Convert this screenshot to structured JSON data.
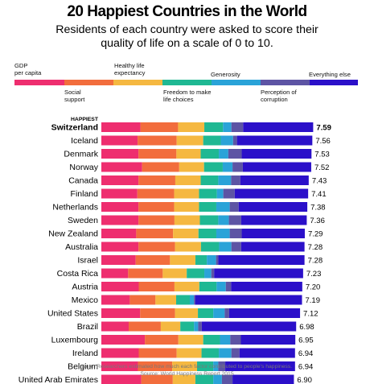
{
  "title": "20 Happiest Countries in the World",
  "subtitle": "Residents of each country were asked to score their quality of life on a scale of 0 to 10.",
  "happiest_label": "HAPPIEST",
  "note": "Note: Researchers estimated how much each factor contributed to people's happiness.",
  "source": "Source: World Happiness Report 2015",
  "chart_data": {
    "type": "bar",
    "orientation": "horizontal",
    "stacked": true,
    "categories": [
      "Switzerland",
      "Iceland",
      "Denmark",
      "Norway",
      "Canada",
      "Finland",
      "Netherlands",
      "Sweden",
      "New Zealand",
      "Australia",
      "Israel",
      "Costa Rica",
      "Austria",
      "Mexico",
      "United States",
      "Brazil",
      "Luxembourg",
      "Ireland",
      "Belgium",
      "United Arab Emirates"
    ],
    "totals": [
      7.59,
      7.56,
      7.53,
      7.52,
      7.43,
      7.41,
      7.38,
      7.36,
      7.29,
      7.28,
      7.28,
      7.23,
      7.2,
      7.19,
      7.12,
      6.98,
      6.95,
      6.94,
      6.94,
      6.9
    ],
    "total_labels": [
      "7.59",
      "7.56",
      "7.53",
      "7.52",
      "7.43",
      "7.41",
      "7.38",
      "7.36",
      "7.29",
      "7.28",
      "7.28",
      "7.23",
      "7.20",
      "7.19",
      "7.12",
      "6.98",
      "6.95",
      "6.94",
      "6.94",
      "6.90"
    ],
    "series": [
      {
        "name": "GDP per capita",
        "color": "#ee2e6f",
        "values": [
          1.4,
          1.3,
          1.33,
          1.46,
          1.33,
          1.29,
          1.33,
          1.33,
          1.25,
          1.33,
          1.23,
          0.96,
          1.34,
          1.02,
          1.39,
          0.98,
          1.56,
          1.34,
          1.31,
          1.43
        ]
      },
      {
        "name": "Social support",
        "color": "#f26d3d",
        "values": [
          1.35,
          1.4,
          1.36,
          1.33,
          1.32,
          1.32,
          1.28,
          1.29,
          1.32,
          1.31,
          1.23,
          1.24,
          1.28,
          0.92,
          1.25,
          1.15,
          1.2,
          1.36,
          1.23,
          1.13
        ]
      },
      {
        "name": "Healthy life expectancy",
        "color": "#f5b841",
        "values": [
          0.94,
          0.95,
          0.87,
          0.89,
          0.91,
          0.89,
          0.89,
          0.91,
          0.91,
          0.93,
          0.91,
          0.86,
          0.89,
          0.74,
          0.82,
          0.7,
          0.89,
          0.89,
          0.89,
          0.81
        ]
      },
      {
        "name": "Freedom to make life choices",
        "color": "#1fb893",
        "values": [
          0.67,
          0.63,
          0.65,
          0.67,
          0.63,
          0.64,
          0.62,
          0.66,
          0.64,
          0.65,
          0.41,
          0.63,
          0.62,
          0.49,
          0.55,
          0.49,
          0.6,
          0.62,
          0.58,
          0.64
        ]
      },
      {
        "name": "Generosity",
        "color": "#2aa3d8",
        "values": [
          0.3,
          0.44,
          0.34,
          0.35,
          0.46,
          0.23,
          0.48,
          0.38,
          0.48,
          0.44,
          0.33,
          0.25,
          0.33,
          0.15,
          0.41,
          0.15,
          0.37,
          0.45,
          0.18,
          0.31
        ]
      },
      {
        "name": "Perception of corruption",
        "color": "#5d54a4",
        "values": [
          0.42,
          0.14,
          0.48,
          0.37,
          0.33,
          0.41,
          0.32,
          0.44,
          0.43,
          0.35,
          0.08,
          0.1,
          0.19,
          0.04,
          0.16,
          0.13,
          0.38,
          0.29,
          0.25,
          0.38
        ]
      },
      {
        "name": "Everything else",
        "color": "#2b10c9",
        "values": [
          2.51,
          2.7,
          2.5,
          2.45,
          2.45,
          2.63,
          2.46,
          2.35,
          2.26,
          2.27,
          3.09,
          3.19,
          2.55,
          3.83,
          2.54,
          3.38,
          1.95,
          1.99,
          2.5,
          2.2
        ]
      }
    ],
    "legend_position": "top",
    "gridlines": false
  },
  "legend_labels": {
    "gdp": "GDP\nper capita",
    "social": "Social\nsupport",
    "health": "Healthy life\nexpectancy",
    "freedom": "Freedom to make\nlife choices",
    "generosity": "Generosity",
    "corruption": "Perception of\ncorruption",
    "else": "Everything else"
  }
}
